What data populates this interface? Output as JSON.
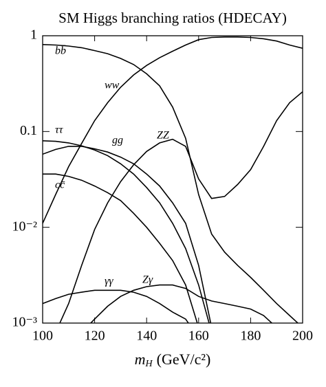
{
  "chart_data": {
    "type": "line",
    "title": "SM Higgs branching ratios (HDECAY)",
    "x_label": {
      "symbol": "m",
      "subscript": "H",
      "unit": "(GeV/c²)"
    },
    "log_y": true,
    "x": [
      100,
      105,
      110,
      115,
      120,
      125,
      130,
      135,
      140,
      145,
      150,
      155,
      160,
      165,
      170,
      175,
      180,
      185,
      190,
      195,
      200
    ],
    "series": [
      {
        "name": "bb̄",
        "color": "#000000",
        "values": [
          0.81,
          0.8,
          0.78,
          0.75,
          0.7,
          0.65,
          0.58,
          0.5,
          0.4,
          0.3,
          0.18,
          0.085,
          0.022,
          0.0085,
          0.0055,
          0.004,
          0.003,
          0.0022,
          0.0016,
          0.0012,
          0.0009
        ]
      },
      {
        "name": "ww",
        "color": "#000000",
        "values": [
          0.011,
          0.022,
          0.043,
          0.075,
          0.13,
          0.2,
          0.29,
          0.39,
          0.49,
          0.59,
          0.69,
          0.8,
          0.91,
          0.96,
          0.97,
          0.97,
          0.96,
          0.93,
          0.88,
          0.8,
          0.74
        ]
      },
      {
        "name": "ττ",
        "color": "#000000",
        "values": [
          0.08,
          0.079,
          0.076,
          0.071,
          0.064,
          0.056,
          0.046,
          0.036,
          0.026,
          0.018,
          0.011,
          0.006,
          0.0025,
          0.0008,
          null,
          null,
          null,
          null,
          null,
          null,
          null
        ]
      },
      {
        "name": "gg",
        "color": "#000000",
        "values": [
          0.058,
          0.065,
          0.07,
          0.07,
          0.066,
          0.061,
          0.054,
          0.046,
          0.036,
          0.027,
          0.018,
          0.011,
          0.004,
          0.0009,
          null,
          null,
          null,
          null,
          null,
          null,
          null
        ]
      },
      {
        "name": "ZZ",
        "color": "#000000",
        "values": [
          null,
          0.0008,
          0.0016,
          0.004,
          0.0095,
          0.018,
          0.03,
          0.045,
          0.062,
          0.076,
          0.083,
          0.07,
          0.032,
          0.02,
          0.021,
          0.028,
          0.04,
          0.07,
          0.13,
          0.2,
          0.26
        ]
      },
      {
        "name": "cc̄",
        "color": "#000000",
        "values": [
          0.036,
          0.036,
          0.034,
          0.031,
          0.027,
          0.023,
          0.019,
          0.014,
          0.01,
          0.0068,
          0.0045,
          0.0025,
          0.0009,
          null,
          null,
          null,
          null,
          null,
          null,
          null,
          null
        ]
      },
      {
        "name": "γγ",
        "color": "#000000",
        "values": [
          0.0016,
          0.0018,
          0.002,
          0.0021,
          0.0022,
          0.0022,
          0.0022,
          0.0021,
          0.0019,
          0.0016,
          0.0013,
          0.0011,
          0.0007,
          null,
          null,
          null,
          null,
          null,
          null,
          null,
          null
        ]
      },
      {
        "name": "Zγ",
        "color": "#000000",
        "values": [
          null,
          null,
          null,
          0.0008,
          0.0011,
          0.0015,
          0.0019,
          0.0022,
          0.0024,
          0.0025,
          0.0025,
          0.0023,
          0.0019,
          0.0017,
          0.0016,
          0.0015,
          0.0014,
          0.0012,
          0.0009,
          null,
          null
        ]
      }
    ],
    "xlim": [
      100,
      200
    ],
    "xticks": [
      100,
      120,
      140,
      160,
      180,
      200
    ],
    "ylim": [
      0.001,
      1
    ],
    "yticks": [
      {
        "value": 0.001,
        "label": "10⁻³"
      },
      {
        "value": 0.01,
        "label": "10⁻²"
      },
      0.1,
      1
    ]
  }
}
